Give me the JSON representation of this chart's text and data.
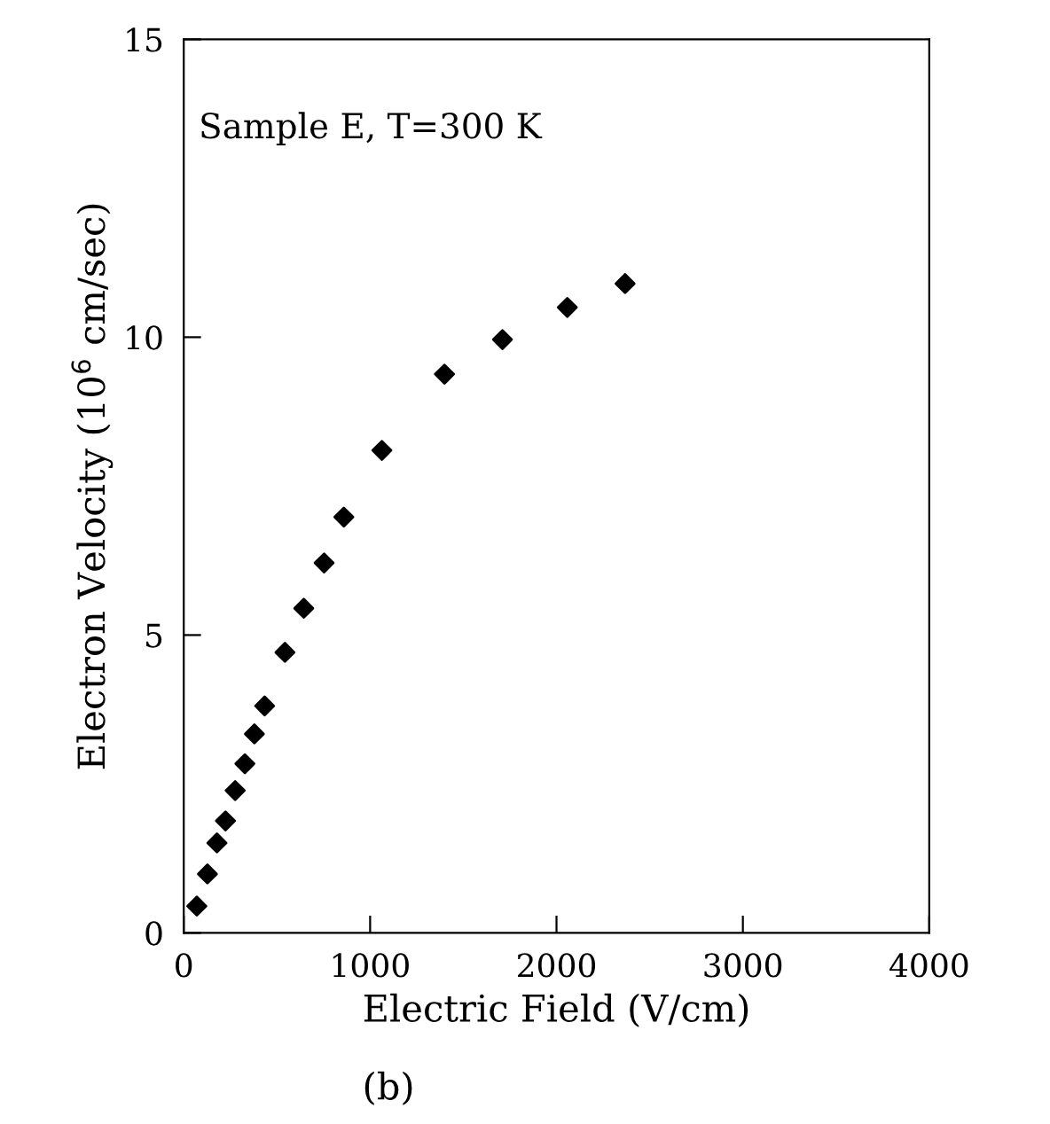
{
  "chart_data": {
    "type": "scatter",
    "xlabel": "Electric Field (V/cm)",
    "ylabel": "Electron Velocity (10$^{6}$ cm/sec)",
    "annotations": [
      "Sample E, T=300 K",
      "(b)"
    ],
    "x": [
      70,
      127,
      178,
      224,
      276,
      328,
      379,
      434,
      543,
      644,
      753,
      859,
      1063,
      1399,
      1710,
      2058,
      2368
    ],
    "series": [
      {
        "color": "#000000",
        "values": [
          0.45,
          0.99,
          1.51,
          1.88,
          2.39,
          2.84,
          3.34,
          3.81,
          4.71,
          5.45,
          6.21,
          6.98,
          8.1,
          9.38,
          9.96,
          10.5,
          10.9
        ]
      }
    ],
    "marker": "diamond",
    "xlim": [
      0,
      4000
    ],
    "ylim": [
      0,
      15
    ],
    "xticks": [
      0,
      1000,
      2000,
      3000,
      4000
    ],
    "yticks": [
      0,
      5,
      10,
      15
    ]
  }
}
